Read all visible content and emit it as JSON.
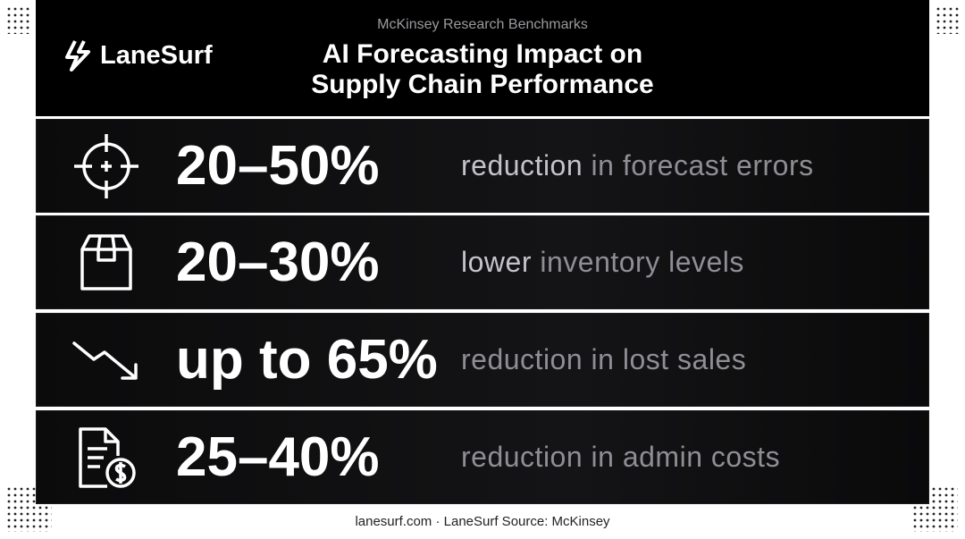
{
  "header": {
    "logo": "LaneSurf",
    "subtitle": "McKinsey Research Benchmarks",
    "title_lines": [
      "AI Forecasting Impact on",
      "Supply Chain Performance"
    ]
  },
  "rows": [
    {
      "stat": "20–50%",
      "emphasis": "reduction",
      "text": "in forecast errors"
    },
    {
      "stat": "20–30%",
      "emphasis": "lower",
      "text": "inventory levels"
    },
    {
      "stat": "up to 65%",
      "text": "reduction in lost sales"
    },
    {
      "stat": "25–40%",
      "text": "reduction in admin costs"
    }
  ],
  "footer": "lanesurf.com · LaneSurf Source: McKinsey"
}
